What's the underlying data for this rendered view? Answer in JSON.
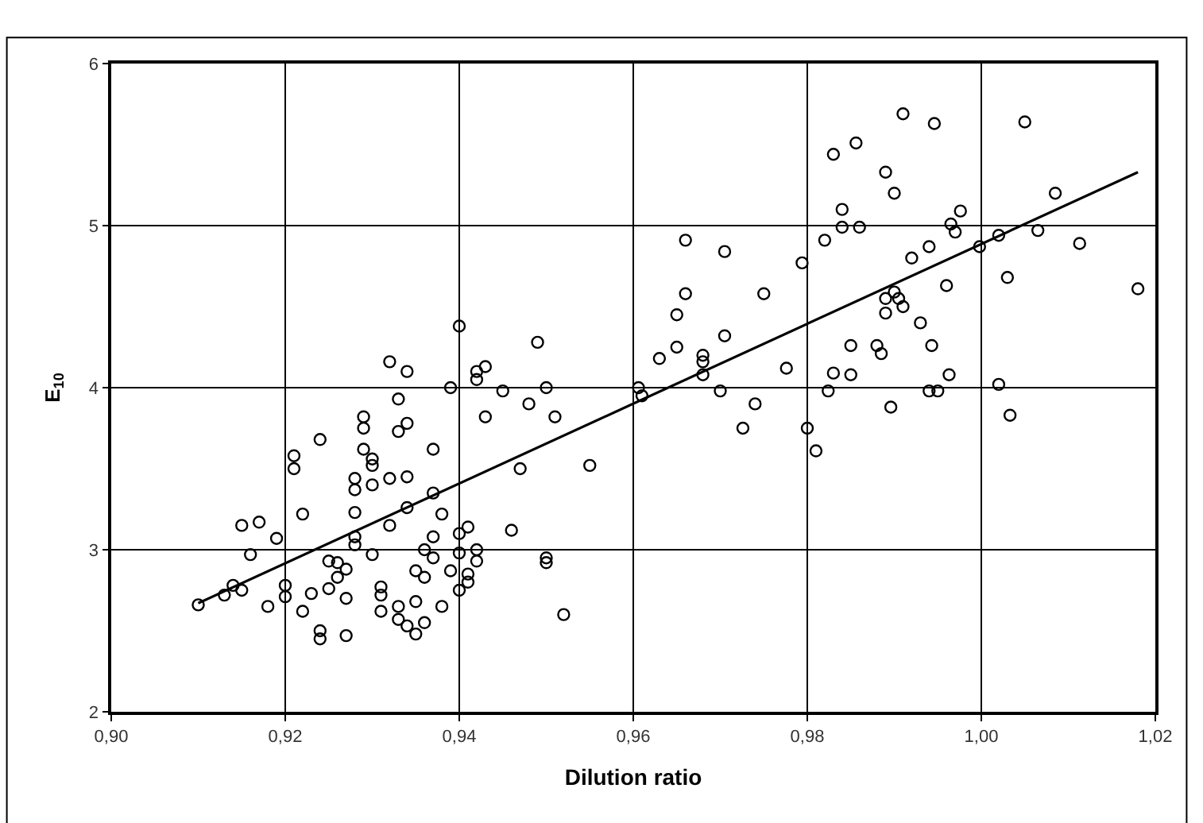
{
  "chart_data": {
    "type": "scatter",
    "xlabel": "Dilution ratio",
    "ylabel": "E$_{10}$",
    "xlim": [
      0.9,
      1.02
    ],
    "ylim": [
      2,
      6
    ],
    "xticks": [
      {
        "value": 0.9,
        "label": "0,90"
      },
      {
        "value": 0.92,
        "label": "0,92"
      },
      {
        "value": 0.94,
        "label": "0,94"
      },
      {
        "value": 0.96,
        "label": "0,96"
      },
      {
        "value": 0.98,
        "label": "0,98"
      },
      {
        "value": 1.0,
        "label": "1,00"
      },
      {
        "value": 1.02,
        "label": "1,02"
      }
    ],
    "yticks": [
      2,
      3,
      4,
      5,
      6
    ],
    "grid": true,
    "marker": "circle",
    "series": [
      {
        "color": "#000000",
        "x": [
          0.91,
          0.913,
          0.914,
          0.915,
          0.916,
          0.917,
          0.915,
          0.918,
          0.919,
          0.92,
          0.92,
          0.921,
          0.921,
          0.922,
          0.922,
          0.923,
          0.924,
          0.924,
          0.924,
          0.925,
          0.925,
          0.926,
          0.926,
          0.927,
          0.927,
          0.927,
          0.928,
          0.928,
          0.928,
          0.928,
          0.928,
          0.929,
          0.929,
          0.929,
          0.93,
          0.93,
          0.93,
          0.93,
          0.931,
          0.931,
          0.931,
          0.932,
          0.932,
          0.932,
          0.933,
          0.933,
          0.933,
          0.933,
          0.934,
          0.934,
          0.934,
          0.934,
          0.934,
          0.935,
          0.935,
          0.935,
          0.936,
          0.936,
          0.936,
          0.937,
          0.937,
          0.937,
          0.937,
          0.938,
          0.938,
          0.939,
          0.939,
          0.94,
          0.94,
          0.94,
          0.94,
          0.941,
          0.941,
          0.941,
          0.942,
          0.942,
          0.942,
          0.942,
          0.943,
          0.943,
          0.945,
          0.946,
          0.947,
          0.948,
          0.949,
          0.95,
          0.95,
          0.95,
          0.951,
          0.952,
          0.955,
          0.9606,
          0.961,
          0.963,
          0.965,
          0.965,
          0.966,
          0.966,
          0.968,
          0.968,
          0.968,
          0.97,
          0.9705,
          0.9705,
          0.9726,
          0.974,
          0.975,
          0.9776,
          0.9794,
          0.98,
          0.981,
          0.982,
          0.9824,
          0.983,
          0.983,
          0.984,
          0.984,
          0.985,
          0.985,
          0.9856,
          0.986,
          0.988,
          0.989,
          0.989,
          0.9885,
          0.989,
          0.99,
          0.9896,
          0.99,
          0.9905,
          0.991,
          0.991,
          0.992,
          0.993,
          0.994,
          0.994,
          0.9946,
          0.9943,
          0.995,
          0.996,
          0.9963,
          0.9965,
          0.997,
          0.9976,
          0.9998,
          1.002,
          1.002,
          1.003,
          1.0033,
          1.005,
          1.0065,
          1.0085,
          1.0113,
          1.018
        ],
        "values": [
          2.66,
          2.72,
          2.78,
          2.75,
          2.97,
          3.17,
          3.15,
          2.65,
          3.07,
          2.71,
          2.78,
          3.58,
          3.5,
          2.62,
          3.22,
          2.73,
          3.68,
          2.45,
          2.5,
          2.76,
          2.93,
          2.92,
          2.83,
          2.47,
          2.7,
          2.88,
          3.03,
          3.08,
          3.23,
          3.37,
          3.44,
          3.82,
          3.75,
          3.62,
          3.52,
          3.56,
          3.4,
          2.97,
          2.77,
          2.62,
          2.72,
          3.44,
          4.16,
          3.15,
          2.65,
          2.57,
          3.93,
          3.73,
          4.1,
          3.78,
          3.45,
          3.26,
          2.53,
          2.48,
          2.87,
          2.68,
          2.83,
          2.55,
          3.0,
          3.62,
          3.08,
          2.95,
          3.35,
          3.22,
          2.65,
          2.87,
          4.0,
          2.75,
          2.98,
          3.1,
          4.38,
          3.14,
          2.85,
          2.8,
          3.0,
          2.93,
          4.1,
          4.05,
          3.82,
          4.13,
          3.98,
          3.12,
          3.5,
          3.9,
          4.28,
          4.0,
          2.92,
          2.95,
          3.82,
          2.6,
          3.52,
          4.0,
          3.95,
          4.18,
          4.45,
          4.25,
          4.91,
          4.58,
          4.16,
          4.08,
          4.2,
          3.98,
          4.84,
          4.32,
          3.75,
          3.9,
          4.58,
          4.12,
          4.77,
          3.75,
          3.61,
          4.91,
          3.98,
          4.09,
          5.44,
          5.1,
          4.99,
          4.08,
          4.26,
          5.51,
          4.99,
          4.26,
          4.55,
          4.46,
          4.21,
          5.33,
          4.59,
          3.88,
          5.2,
          4.55,
          4.5,
          5.69,
          4.8,
          4.4,
          3.98,
          4.87,
          5.63,
          4.26,
          3.98,
          4.63,
          4.08,
          5.01,
          4.96,
          5.09,
          4.87,
          4.94,
          4.02,
          4.68,
          3.83,
          5.64,
          4.97,
          5.2,
          4.89,
          4.61
        ]
      },
      {
        "type": "line",
        "color": "#000000",
        "marker": "none",
        "x": [
          0.91,
          1.018
        ],
        "values": [
          2.67,
          5.33
        ]
      }
    ]
  }
}
